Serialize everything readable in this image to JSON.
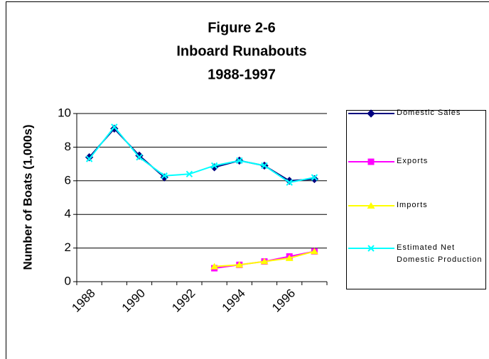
{
  "chart_data": {
    "type": "line",
    "title": "Figure 2-6",
    "subtitle": "Inboard Runabouts",
    "subtitle2": "1988-1997",
    "y_label": "Number of Boats (1,000s)",
    "categories": [
      "1988",
      null,
      "1990",
      null,
      "1992",
      null,
      "1994",
      null,
      "1996",
      null
    ],
    "ylim": [
      0,
      10
    ],
    "yticks": [
      0,
      2,
      4,
      6,
      8,
      10
    ],
    "grid": true,
    "legend": "right",
    "series": [
      {
        "name": "Domestic Sales",
        "color": "#000080",
        "marker": "diamond",
        "values": [
          7.4,
          9.1,
          7.5,
          6.2,
          null,
          6.8,
          7.2,
          6.9,
          6.0,
          6.1
        ]
      },
      {
        "name": "Exports",
        "color": "#ff00ff",
        "marker": "square",
        "values": [
          null,
          null,
          null,
          null,
          null,
          0.8,
          1.0,
          1.2,
          1.5,
          1.8
        ]
      },
      {
        "name": "Imports",
        "color": "#ffff00",
        "marker": "triangle",
        "values": [
          null,
          null,
          null,
          null,
          null,
          0.9,
          1.0,
          1.2,
          1.4,
          1.8
        ]
      },
      {
        "name": "Estimated Net Domestic Production",
        "color": "#00ffff",
        "marker": "x",
        "values": [
          7.3,
          9.2,
          7.4,
          6.3,
          6.4,
          6.9,
          7.2,
          6.9,
          5.9,
          6.2
        ]
      }
    ]
  }
}
